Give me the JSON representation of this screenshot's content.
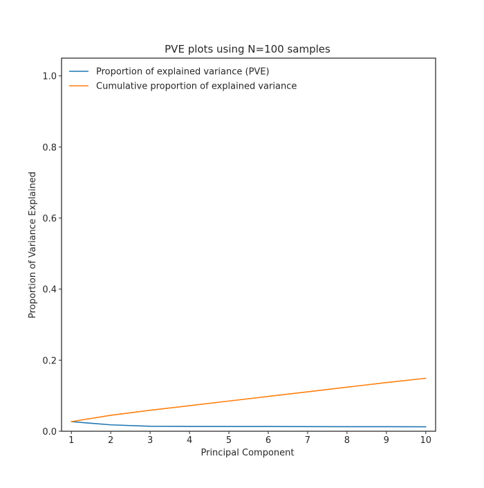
{
  "chart_data": {
    "type": "line",
    "title": "PVE plots using N=100 samples",
    "xlabel": "Principal Component",
    "ylabel": "Proportion of Variance Explained",
    "x": [
      1,
      2,
      3,
      4,
      5,
      6,
      7,
      8,
      9,
      10
    ],
    "xlim": [
      0.75,
      10.25
    ],
    "ylim": [
      0,
      1.05
    ],
    "xticks": [
      1,
      2,
      3,
      4,
      5,
      6,
      7,
      8,
      9,
      10
    ],
    "yticks": [
      0.0,
      0.2,
      0.4,
      0.6,
      0.8,
      1.0
    ],
    "ytick_labels": [
      "0.0",
      "0.2",
      "0.4",
      "0.6",
      "0.8",
      "1.0"
    ],
    "grid": false,
    "legend_position": "top-left",
    "series": [
      {
        "name": "Proportion of explained variance (PVE)",
        "color": "#1f77b4",
        "values": [
          0.027,
          0.018,
          0.014,
          0.0135,
          0.0133,
          0.0132,
          0.013,
          0.0128,
          0.0127,
          0.0125
        ]
      },
      {
        "name": "Cumulative proportion of explained variance",
        "color": "#ff7f0e",
        "values": [
          0.027,
          0.045,
          0.059,
          0.072,
          0.085,
          0.098,
          0.111,
          0.124,
          0.137,
          0.149
        ]
      }
    ]
  }
}
